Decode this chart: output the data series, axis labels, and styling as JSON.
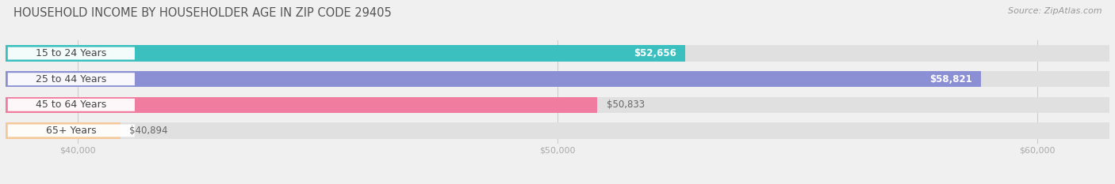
{
  "title": "HOUSEHOLD INCOME BY HOUSEHOLDER AGE IN ZIP CODE 29405",
  "source": "Source: ZipAtlas.com",
  "categories": [
    "15 to 24 Years",
    "25 to 44 Years",
    "45 to 64 Years",
    "65+ Years"
  ],
  "values": [
    52656,
    58821,
    50833,
    40894
  ],
  "bar_colors": [
    "#3BBFBF",
    "#8B8FD4",
    "#F07CA0",
    "#F5C89A"
  ],
  "bar_labels": [
    "$52,656",
    "$58,821",
    "$50,833",
    "$40,894"
  ],
  "label_inside": [
    true,
    true,
    false,
    false
  ],
  "xmin": 38500,
  "xmax": 61500,
  "data_min": 38500,
  "xticks": [
    40000,
    50000,
    60000
  ],
  "xtick_labels": [
    "$40,000",
    "$50,000",
    "$60,000"
  ],
  "bg_color": "#f0f0f0",
  "bar_bg_color": "#e0e0e0",
  "title_fontsize": 10.5,
  "source_fontsize": 8,
  "label_fontsize": 8.5,
  "tick_fontsize": 8,
  "category_fontsize": 9,
  "bar_height": 0.62,
  "bar_sep": 0.18
}
